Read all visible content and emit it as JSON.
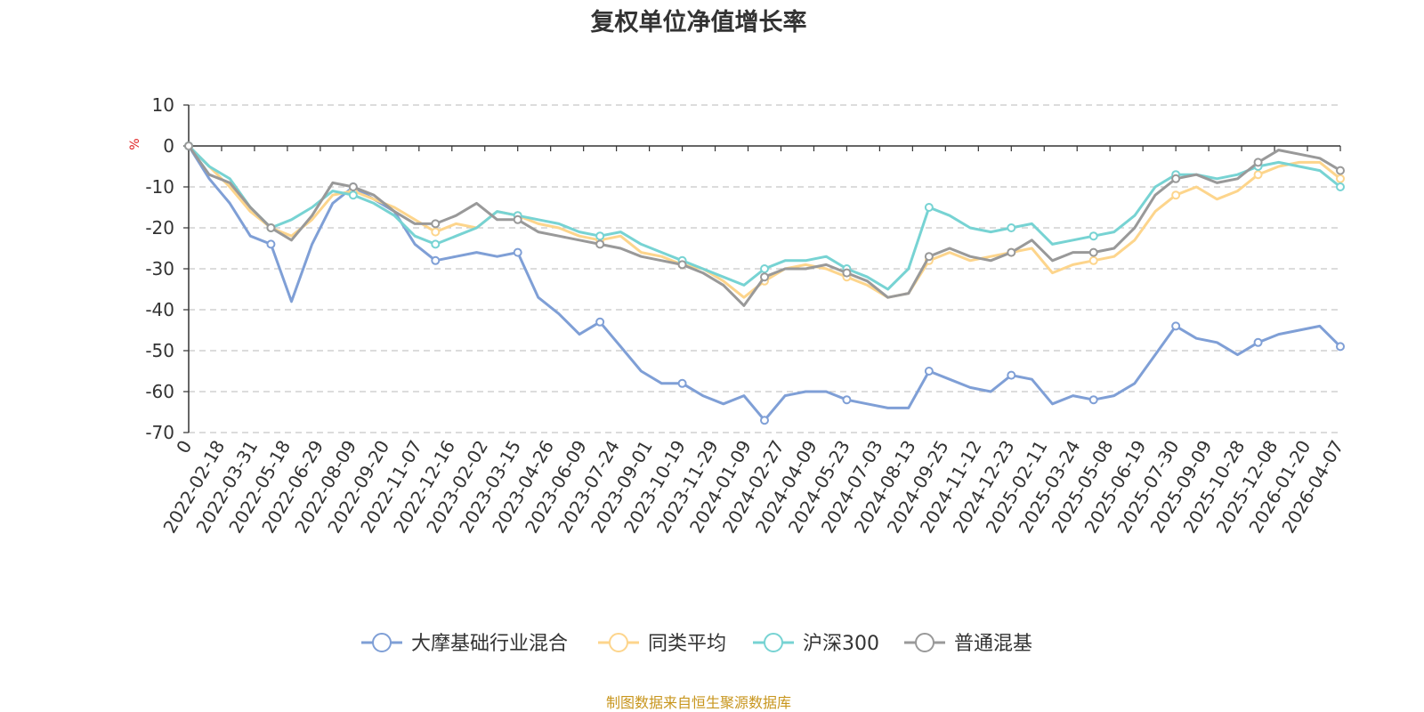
{
  "chart_data": {
    "type": "line",
    "title": "复权单位净值增长率",
    "ylabel": "%",
    "ylim": [
      -70,
      10
    ],
    "yticks": [
      10,
      0,
      -10,
      -20,
      -30,
      -40,
      -50,
      -60,
      -70
    ],
    "grid": true,
    "legend_position": "bottom-center",
    "x_tick_labels": [
      "0",
      "2022-02-18",
      "2022-03-31",
      "2022-05-18",
      "2022-06-29",
      "2022-08-09",
      "2022-09-20",
      "2022-11-07",
      "2022-12-16",
      "2023-02-02",
      "2023-03-15",
      "2023-04-26",
      "2023-06-09",
      "2023-07-24",
      "2023-09-01",
      "2023-10-19",
      "2023-11-29",
      "2024-01-09",
      "2024-02-27",
      "2024-04-09",
      "2024-05-23",
      "2024-07-03",
      "2024-08-13",
      "2024-09-25",
      "2024-11-12",
      "2024-12-23",
      "2025-02-11",
      "2025-03-24",
      "2025-05-08",
      "2025-06-19",
      "2025-07-30",
      "2025-09-09",
      "2025-10-28",
      "2025-12-08",
      "2026-01-20",
      "2026-04-07"
    ],
    "series": [
      {
        "name": "大摩基础行业混合",
        "color": "#7f9fd6",
        "values": [
          0,
          -8,
          -14,
          -22,
          -24,
          -38,
          -24,
          -14,
          -10,
          -13,
          -16,
          -24,
          -28,
          -27,
          -26,
          -27,
          -26,
          -37,
          -41,
          -46,
          -43,
          -49,
          -55,
          -58,
          -58,
          -61,
          -63,
          -61,
          -67,
          -61,
          -60,
          -60,
          -62,
          -63,
          -64,
          -64,
          -55,
          -57,
          -59,
          -60,
          -56,
          -57,
          -63,
          -61,
          -62,
          -61,
          -58,
          -51,
          -44,
          -47,
          -48,
          -51,
          -48,
          -46,
          -45,
          -44,
          -49
        ]
      },
      {
        "name": "同类平均",
        "color": "#fdd58c",
        "values": [
          0,
          -5,
          -10,
          -16,
          -20,
          -22,
          -18,
          -12,
          -11,
          -13,
          -15,
          -18,
          -21,
          -19,
          -20,
          -16,
          -17,
          -19,
          -20,
          -22,
          -23,
          -22,
          -26,
          -27,
          -29,
          -30,
          -33,
          -37,
          -33,
          -30,
          -29,
          -30,
          -32,
          -34,
          -37,
          -36,
          -28,
          -26,
          -28,
          -27,
          -26,
          -25,
          -31,
          -29,
          -28,
          -27,
          -23,
          -16,
          -12,
          -10,
          -13,
          -11,
          -7,
          -5,
          -4,
          -4,
          -8
        ]
      },
      {
        "name": "沪深300",
        "color": "#77d3d3",
        "values": [
          0,
          -5,
          -8,
          -15,
          -20,
          -18,
          -15,
          -11,
          -12,
          -14,
          -17,
          -22,
          -24,
          -22,
          -20,
          -16,
          -17,
          -18,
          -19,
          -21,
          -22,
          -21,
          -24,
          -26,
          -28,
          -30,
          -32,
          -34,
          -30,
          -28,
          -28,
          -27,
          -30,
          -32,
          -35,
          -30,
          -15,
          -17,
          -20,
          -21,
          -20,
          -19,
          -24,
          -23,
          -22,
          -21,
          -17,
          -10,
          -7,
          -7,
          -8,
          -7,
          -5,
          -4,
          -5,
          -6,
          -10
        ]
      },
      {
        "name": "普通混基",
        "color": "#999999",
        "values": [
          0,
          -7,
          -9,
          -15,
          -20,
          -23,
          -17,
          -9,
          -10,
          -12,
          -16,
          -19,
          -19,
          -17,
          -14,
          -18,
          -18,
          -21,
          -22,
          -23,
          -24,
          -25,
          -27,
          -28,
          -29,
          -31,
          -34,
          -39,
          -32,
          -30,
          -30,
          -29,
          -31,
          -33,
          -37,
          -36,
          -27,
          -25,
          -27,
          -28,
          -26,
          -23,
          -28,
          -26,
          -26,
          -25,
          -20,
          -12,
          -8,
          -7,
          -9,
          -8,
          -4,
          -1,
          -2,
          -3,
          -6
        ]
      }
    ]
  },
  "legend": {
    "items": [
      "大摩基础行业混合",
      "同类平均",
      "沪深300",
      "普通混基"
    ]
  },
  "footer": {
    "source": "制图数据来自恒生聚源数据库"
  }
}
